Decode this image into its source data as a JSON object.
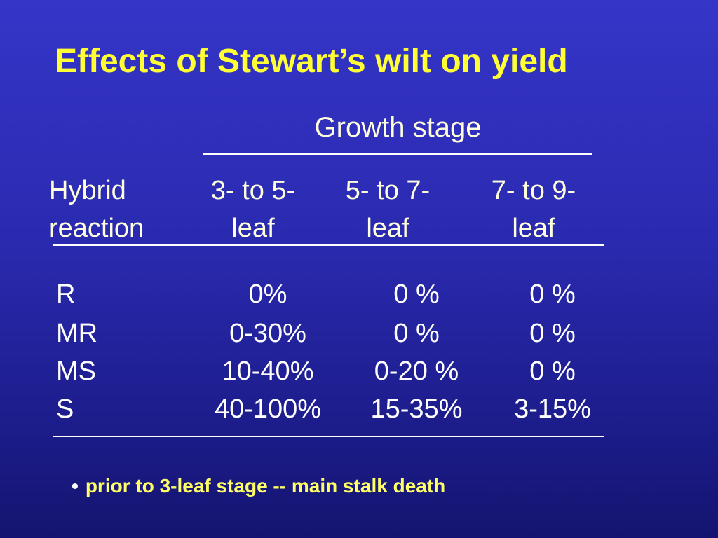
{
  "title": "Effects of Stewart’s wilt on yield",
  "group_header": "Growth stage",
  "table": {
    "columns": [
      {
        "line1": "Hybrid",
        "line2": "reaction"
      },
      {
        "line1": "3- to 5-",
        "line2": "leaf"
      },
      {
        "line1": "5- to 7-",
        "line2": "leaf"
      },
      {
        "line1": "7- to 9-",
        "line2": "leaf"
      }
    ],
    "rows": [
      {
        "reaction": "R",
        "c1": "0%",
        "c2": "0 %",
        "c3": "0 %"
      },
      {
        "reaction": "MR",
        "c1": "0-30%",
        "c2": "0 %",
        "c3": "0 %"
      },
      {
        "reaction": "MS",
        "c1": "10-40%",
        "c2": "0-20 %",
        "c3": "0 %"
      },
      {
        "reaction": "S",
        "c1": "40-100%",
        "c2": "15-35%",
        "c3": "3-15%"
      }
    ]
  },
  "footnote": {
    "bullet": "•",
    "text": "prior to 3-leaf stage -- main stalk death"
  },
  "colors": {
    "title": "#ffff33",
    "header_text": "#ffffdd",
    "body_text": "#ffffff",
    "footnote_text": "#ffff66",
    "background_top": "#3535c8",
    "background_bottom": "#141470"
  }
}
